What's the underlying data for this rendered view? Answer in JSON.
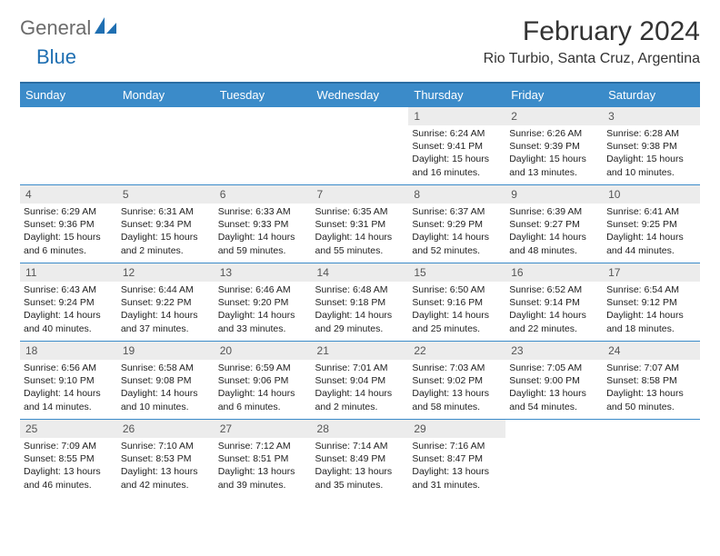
{
  "logo": {
    "text1": "General",
    "text2": "Blue"
  },
  "title": "February 2024",
  "subtitle": "Rio Turbio, Santa Cruz, Argentina",
  "colors": {
    "header_bg": "#3b8bc9",
    "header_border": "#2a6da3",
    "daynum_bg": "#ececec",
    "text": "#222222",
    "logo_gray": "#6b6b6b",
    "logo_blue": "#1f6fb2"
  },
  "dayHeaders": [
    "Sunday",
    "Monday",
    "Tuesday",
    "Wednesday",
    "Thursday",
    "Friday",
    "Saturday"
  ],
  "weeks": [
    [
      null,
      null,
      null,
      null,
      {
        "n": "1",
        "sunrise": "Sunrise: 6:24 AM",
        "sunset": "Sunset: 9:41 PM",
        "daylight": "Daylight: 15 hours and 16 minutes."
      },
      {
        "n": "2",
        "sunrise": "Sunrise: 6:26 AM",
        "sunset": "Sunset: 9:39 PM",
        "daylight": "Daylight: 15 hours and 13 minutes."
      },
      {
        "n": "3",
        "sunrise": "Sunrise: 6:28 AM",
        "sunset": "Sunset: 9:38 PM",
        "daylight": "Daylight: 15 hours and 10 minutes."
      }
    ],
    [
      {
        "n": "4",
        "sunrise": "Sunrise: 6:29 AM",
        "sunset": "Sunset: 9:36 PM",
        "daylight": "Daylight: 15 hours and 6 minutes."
      },
      {
        "n": "5",
        "sunrise": "Sunrise: 6:31 AM",
        "sunset": "Sunset: 9:34 PM",
        "daylight": "Daylight: 15 hours and 2 minutes."
      },
      {
        "n": "6",
        "sunrise": "Sunrise: 6:33 AM",
        "sunset": "Sunset: 9:33 PM",
        "daylight": "Daylight: 14 hours and 59 minutes."
      },
      {
        "n": "7",
        "sunrise": "Sunrise: 6:35 AM",
        "sunset": "Sunset: 9:31 PM",
        "daylight": "Daylight: 14 hours and 55 minutes."
      },
      {
        "n": "8",
        "sunrise": "Sunrise: 6:37 AM",
        "sunset": "Sunset: 9:29 PM",
        "daylight": "Daylight: 14 hours and 52 minutes."
      },
      {
        "n": "9",
        "sunrise": "Sunrise: 6:39 AM",
        "sunset": "Sunset: 9:27 PM",
        "daylight": "Daylight: 14 hours and 48 minutes."
      },
      {
        "n": "10",
        "sunrise": "Sunrise: 6:41 AM",
        "sunset": "Sunset: 9:25 PM",
        "daylight": "Daylight: 14 hours and 44 minutes."
      }
    ],
    [
      {
        "n": "11",
        "sunrise": "Sunrise: 6:43 AM",
        "sunset": "Sunset: 9:24 PM",
        "daylight": "Daylight: 14 hours and 40 minutes."
      },
      {
        "n": "12",
        "sunrise": "Sunrise: 6:44 AM",
        "sunset": "Sunset: 9:22 PM",
        "daylight": "Daylight: 14 hours and 37 minutes."
      },
      {
        "n": "13",
        "sunrise": "Sunrise: 6:46 AM",
        "sunset": "Sunset: 9:20 PM",
        "daylight": "Daylight: 14 hours and 33 minutes."
      },
      {
        "n": "14",
        "sunrise": "Sunrise: 6:48 AM",
        "sunset": "Sunset: 9:18 PM",
        "daylight": "Daylight: 14 hours and 29 minutes."
      },
      {
        "n": "15",
        "sunrise": "Sunrise: 6:50 AM",
        "sunset": "Sunset: 9:16 PM",
        "daylight": "Daylight: 14 hours and 25 minutes."
      },
      {
        "n": "16",
        "sunrise": "Sunrise: 6:52 AM",
        "sunset": "Sunset: 9:14 PM",
        "daylight": "Daylight: 14 hours and 22 minutes."
      },
      {
        "n": "17",
        "sunrise": "Sunrise: 6:54 AM",
        "sunset": "Sunset: 9:12 PM",
        "daylight": "Daylight: 14 hours and 18 minutes."
      }
    ],
    [
      {
        "n": "18",
        "sunrise": "Sunrise: 6:56 AM",
        "sunset": "Sunset: 9:10 PM",
        "daylight": "Daylight: 14 hours and 14 minutes."
      },
      {
        "n": "19",
        "sunrise": "Sunrise: 6:58 AM",
        "sunset": "Sunset: 9:08 PM",
        "daylight": "Daylight: 14 hours and 10 minutes."
      },
      {
        "n": "20",
        "sunrise": "Sunrise: 6:59 AM",
        "sunset": "Sunset: 9:06 PM",
        "daylight": "Daylight: 14 hours and 6 minutes."
      },
      {
        "n": "21",
        "sunrise": "Sunrise: 7:01 AM",
        "sunset": "Sunset: 9:04 PM",
        "daylight": "Daylight: 14 hours and 2 minutes."
      },
      {
        "n": "22",
        "sunrise": "Sunrise: 7:03 AM",
        "sunset": "Sunset: 9:02 PM",
        "daylight": "Daylight: 13 hours and 58 minutes."
      },
      {
        "n": "23",
        "sunrise": "Sunrise: 7:05 AM",
        "sunset": "Sunset: 9:00 PM",
        "daylight": "Daylight: 13 hours and 54 minutes."
      },
      {
        "n": "24",
        "sunrise": "Sunrise: 7:07 AM",
        "sunset": "Sunset: 8:58 PM",
        "daylight": "Daylight: 13 hours and 50 minutes."
      }
    ],
    [
      {
        "n": "25",
        "sunrise": "Sunrise: 7:09 AM",
        "sunset": "Sunset: 8:55 PM",
        "daylight": "Daylight: 13 hours and 46 minutes."
      },
      {
        "n": "26",
        "sunrise": "Sunrise: 7:10 AM",
        "sunset": "Sunset: 8:53 PM",
        "daylight": "Daylight: 13 hours and 42 minutes."
      },
      {
        "n": "27",
        "sunrise": "Sunrise: 7:12 AM",
        "sunset": "Sunset: 8:51 PM",
        "daylight": "Daylight: 13 hours and 39 minutes."
      },
      {
        "n": "28",
        "sunrise": "Sunrise: 7:14 AM",
        "sunset": "Sunset: 8:49 PM",
        "daylight": "Daylight: 13 hours and 35 minutes."
      },
      {
        "n": "29",
        "sunrise": "Sunrise: 7:16 AM",
        "sunset": "Sunset: 8:47 PM",
        "daylight": "Daylight: 13 hours and 31 minutes."
      },
      null,
      null
    ]
  ]
}
